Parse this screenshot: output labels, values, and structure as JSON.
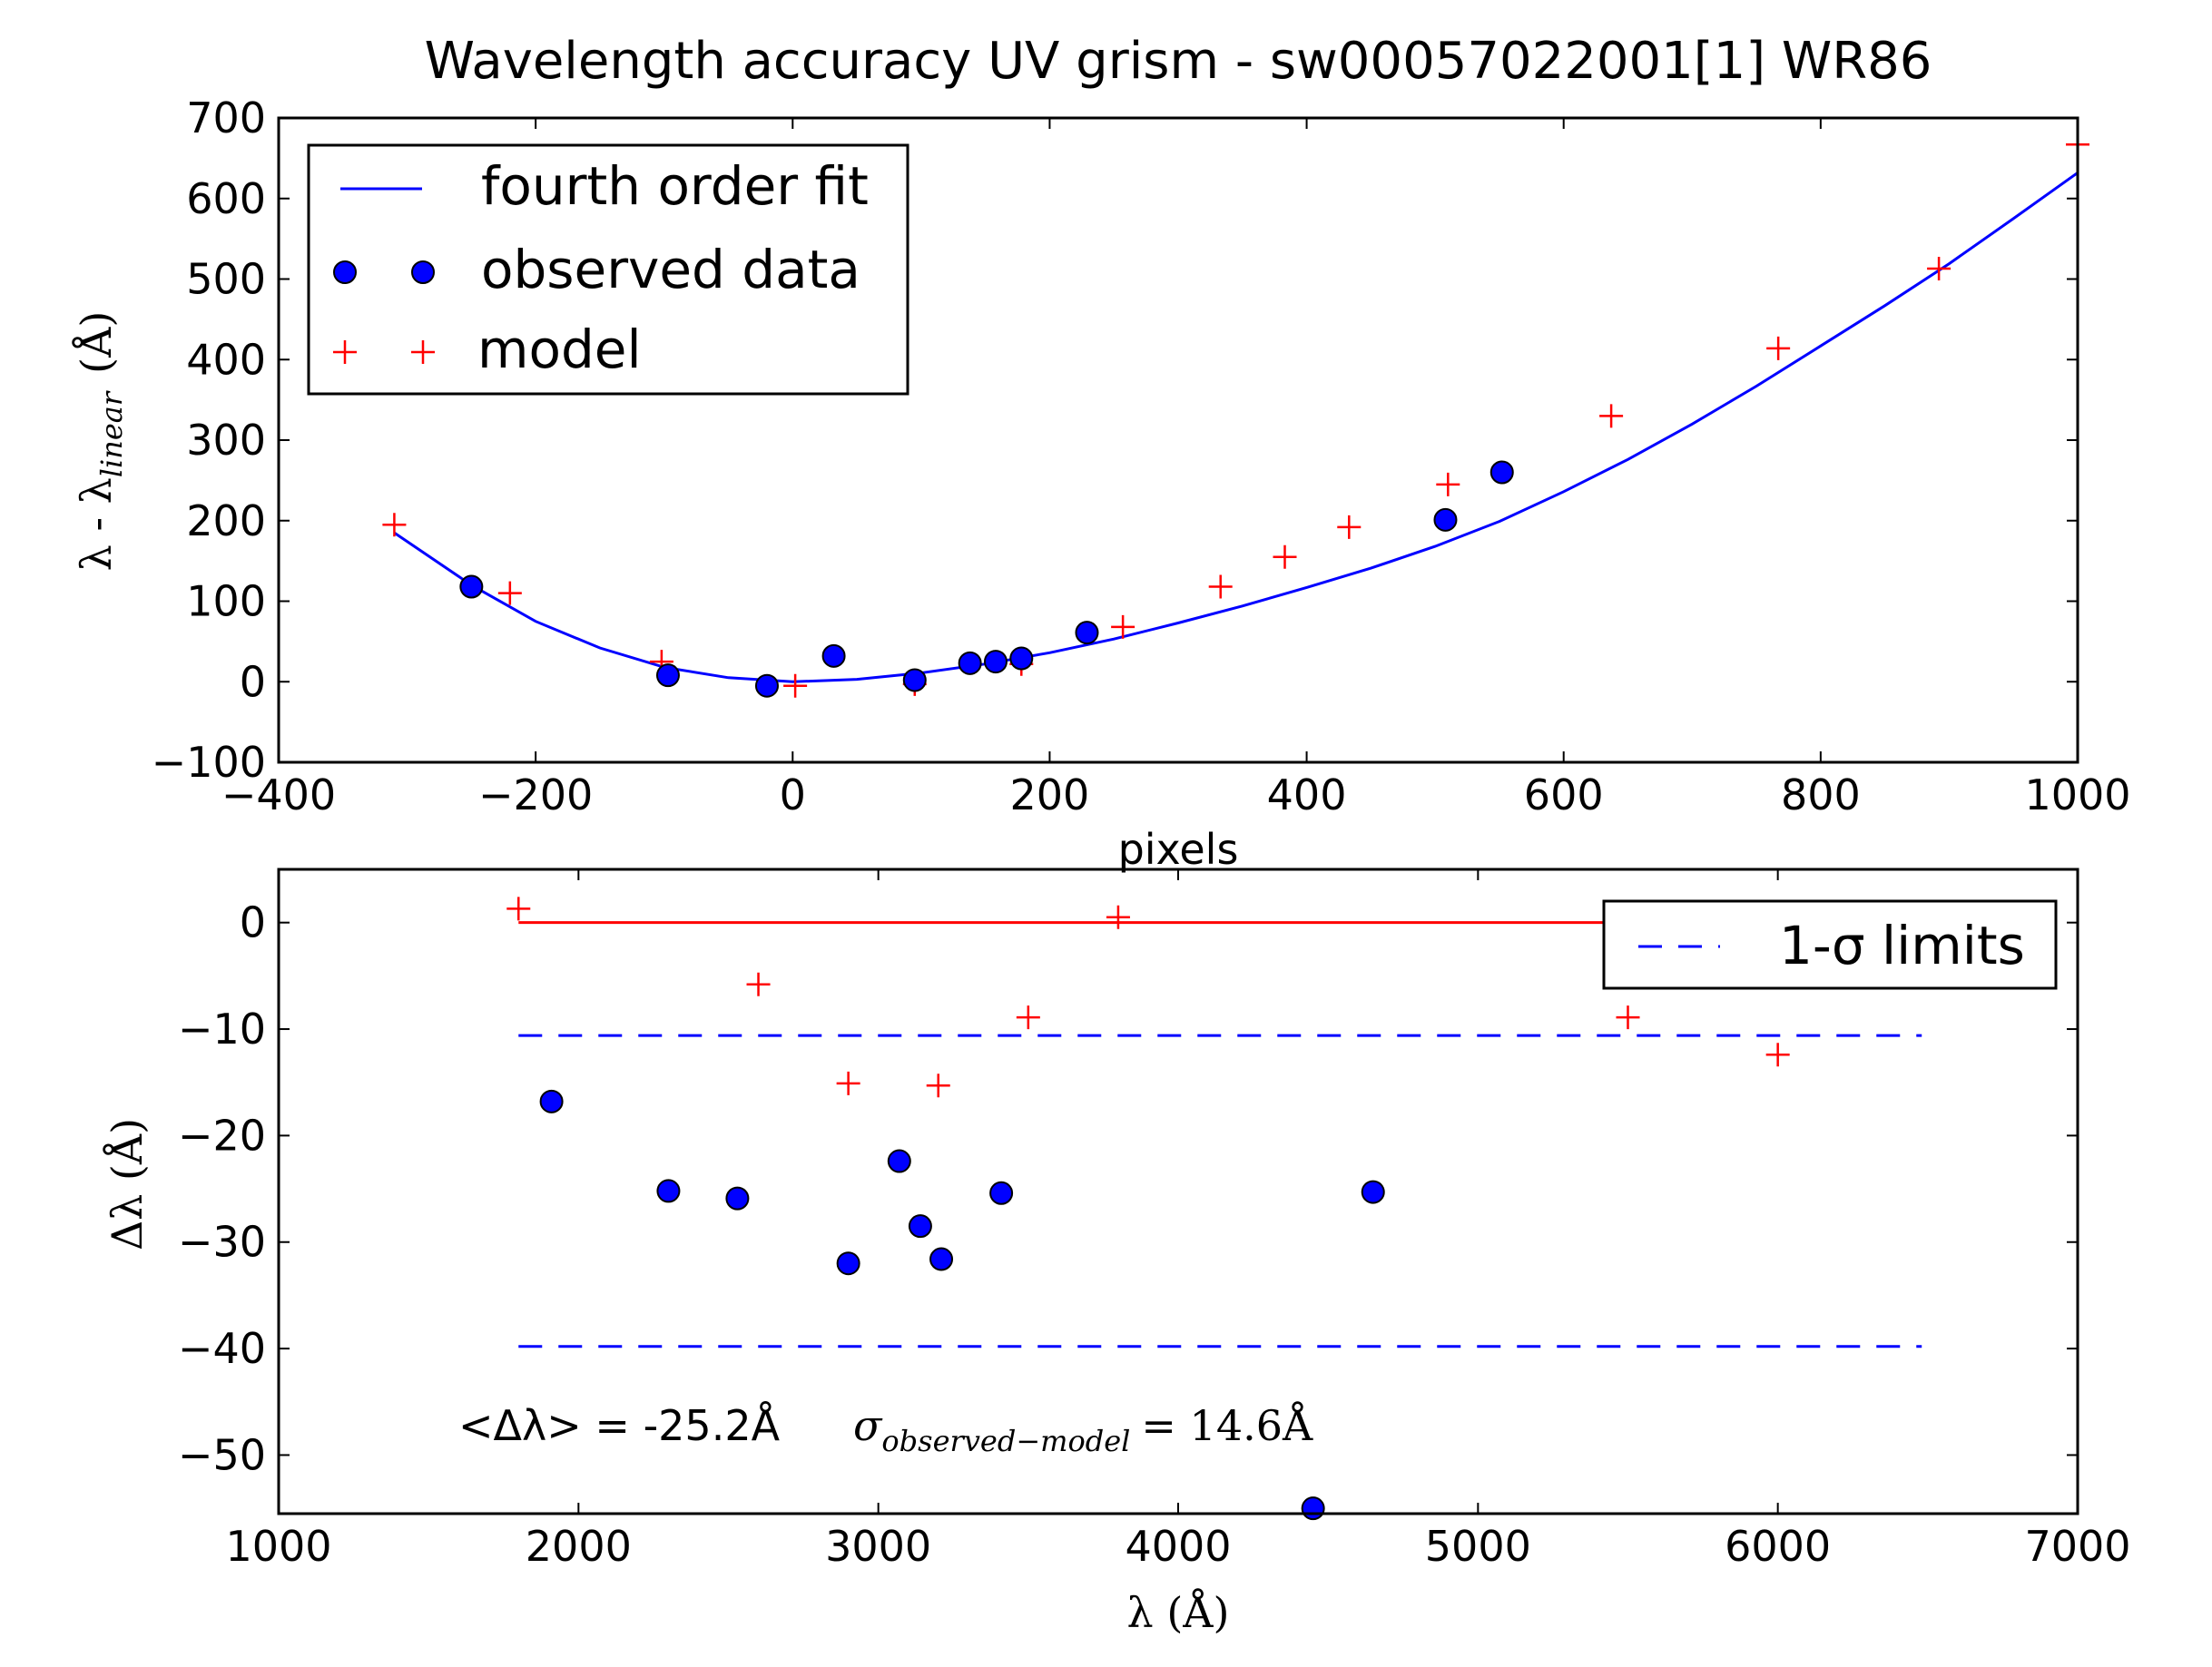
{
  "chart_data": [
    {
      "type": "scatter",
      "title": "Wavelength accuracy UV grism - sw00057022001[1] WR86",
      "xlabel": "pixels",
      "ylabel": {
        "prefix": "λ - λ",
        "subscript": "linear",
        "unit": "(Å)"
      },
      "xlim": [
        -400,
        1000
      ],
      "ylim": [
        -100,
        700
      ],
      "xticks": [
        -400,
        -200,
        0,
        200,
        400,
        600,
        800,
        1000
      ],
      "yticks": [
        -100,
        0,
        100,
        200,
        300,
        400,
        500,
        600,
        700
      ],
      "xtick_labels": [
        "−400",
        "−200",
        "0",
        "200",
        "400",
        "600",
        "800",
        "1000"
      ],
      "ytick_labels": [
        "−100",
        "0",
        "100",
        "200",
        "300",
        "400",
        "500",
        "600",
        "700"
      ],
      "grid": false,
      "legend_position": "top-left",
      "legend": [
        "fourth order fit",
        "observed data",
        "model"
      ],
      "colors": {
        "fit": "#0000ff",
        "observed": "#0000ff",
        "model": "#ff0000"
      },
      "series": [
        {
          "name": "fourth order fit",
          "kind": "line",
          "x": [
            -310,
            -250,
            -200,
            -150,
            -100,
            -50,
            0,
            50,
            100,
            150,
            200,
            250,
            300,
            350,
            400,
            450,
            500,
            550,
            600,
            650,
            700,
            750,
            800,
            850,
            900,
            950,
            1000
          ],
          "y": [
            185,
            120,
            75,
            42,
            18,
            5,
            0,
            3,
            11,
            22,
            36,
            53,
            73,
            94,
            117,
            141,
            168,
            199,
            236,
            276,
            320,
            367,
            417,
            467,
            519,
            575,
            632
          ]
        },
        {
          "name": "observed data",
          "kind": "points",
          "x": [
            -250,
            -97,
            -20,
            32,
            95,
            138,
            158,
            178,
            229,
            508,
            552
          ],
          "y": [
            118,
            8,
            -5,
            32,
            2,
            23,
            25,
            29,
            61,
            201,
            260
          ]
        },
        {
          "name": "model",
          "kind": "plus",
          "x": [
            -310,
            -220,
            -102,
            2,
            95,
            178,
            257,
            333,
            383,
            433,
            510,
            637,
            767,
            892,
            1000
          ],
          "y": [
            195,
            110,
            25,
            -5,
            -3,
            22,
            68,
            118,
            155,
            192,
            245,
            330,
            414,
            513,
            667
          ]
        }
      ]
    },
    {
      "type": "scatter",
      "xlabel": "λ (Å)",
      "ylabel": "Δλ (Å)",
      "xlim": [
        1000,
        7000
      ],
      "ylim": [
        -55.5,
        5
      ],
      "xticks": [
        1000,
        2000,
        3000,
        4000,
        5000,
        6000,
        7000
      ],
      "yticks": [
        0,
        -10,
        -20,
        -30,
        -40,
        -50
      ],
      "xtick_labels": [
        "1000",
        "2000",
        "3000",
        "4000",
        "5000",
        "6000",
        "7000"
      ],
      "ytick_labels": [
        "0",
        "−10",
        "−20",
        "−30",
        "−40",
        "−50"
      ],
      "grid": false,
      "legend_position": "top-right",
      "legend": [
        "1-σ limits"
      ],
      "colors": {
        "zero_line": "#ff0000",
        "limits": "#0000ff",
        "observed": "#0000ff",
        "model": "#ff0000"
      },
      "annotation": {
        "mean_text": "<Δλ> = -25.2Å",
        "sigma_symbol": "σ",
        "sigma_subscript": "observed−model",
        "sigma_value": "= 14.6Å"
      },
      "reference_lines": [
        {
          "name": "zero",
          "x": [
            1800,
            5550
          ],
          "y": 0,
          "style": "solid"
        },
        {
          "name": "1-σ limits",
          "x": [
            1800,
            6480
          ],
          "y": -10.6,
          "style": "dashed"
        },
        {
          "name": "1-σ limits lower",
          "x": [
            1800,
            6480
          ],
          "y": -39.8,
          "style": "dashed"
        }
      ],
      "series": [
        {
          "name": "observed",
          "kind": "points",
          "x": [
            1910,
            2300,
            2530,
            2900,
            3070,
            3140,
            3210,
            3410,
            4450,
            4650
          ],
          "y": [
            -16.8,
            -25.2,
            -25.9,
            -32.0,
            -22.4,
            -28.5,
            -31.6,
            -25.4,
            -55.0,
            -25.3
          ]
        },
        {
          "name": "model",
          "kind": "plus",
          "x": [
            1800,
            2600,
            2900,
            3200,
            3500,
            3800,
            5500,
            6000
          ],
          "y": [
            1.3,
            -5.8,
            -15.1,
            -15.3,
            -8.9,
            0.5,
            -8.9,
            -12.4
          ]
        }
      ]
    }
  ]
}
